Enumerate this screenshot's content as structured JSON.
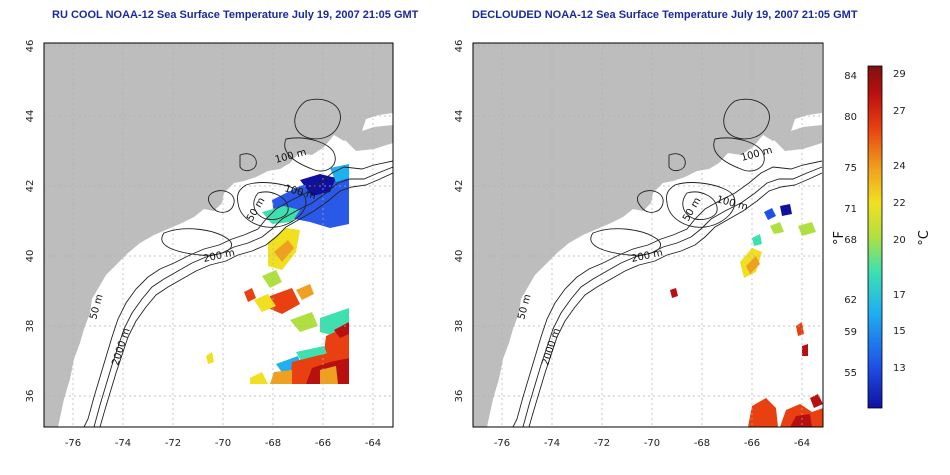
{
  "panels": [
    {
      "id": "left",
      "title": "RU COOL NOAA-12 Sea Surface Temperature July 19, 2007 21:05 GMT",
      "variant": "full"
    },
    {
      "id": "right",
      "title": "DECLOUDED NOAA-12 Sea Surface Temperature July 19, 2007 21:05 GMT",
      "variant": "declouded"
    }
  ],
  "axes": {
    "lon_ticks": [
      "-76",
      "-74",
      "-72",
      "-70",
      "-68",
      "-66",
      "-64"
    ],
    "lat_ticks": [
      "46",
      "44",
      "42",
      "40",
      "38",
      "36"
    ],
    "lon_range": [
      -77,
      -63
    ],
    "lat_range": [
      35,
      46
    ]
  },
  "contour_labels": [
    "100 m",
    "100 m",
    "50 m",
    "200 m",
    "50 m",
    "2000 m"
  ],
  "colorbar": {
    "fahrenheit_label": "°F",
    "celsius_label": "°C",
    "fahrenheit_ticks": [
      "84",
      "80",
      "75",
      "71",
      "68",
      "62",
      "59",
      "55"
    ],
    "celsius_ticks": [
      "29",
      "27",
      "24",
      "22",
      "20",
      "17",
      "15",
      "13"
    ],
    "colors": [
      "#1010a0",
      "#1f4fe6",
      "#1fb0f0",
      "#3fe0b0",
      "#b0e040",
      "#f0e020",
      "#f0a020",
      "#e84010",
      "#b81010",
      "#801010"
    ]
  },
  "colors": {
    "land": "#bdbdbd",
    "grid": "#b0b0b0",
    "contour": "#222222",
    "title": "#1a2a9a"
  }
}
